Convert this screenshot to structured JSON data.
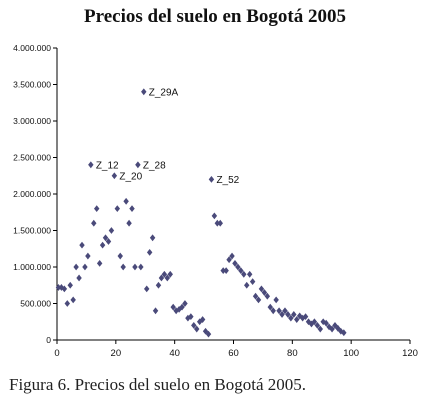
{
  "title": "Precios del suelo en Bogotá 2005",
  "caption": "Figura 6. Precios del suelo en Bogotá 2005.",
  "chart_data": {
    "type": "scatter",
    "title": "Precios del suelo en Bogotá 2005",
    "xlabel": "",
    "ylabel": "",
    "xlim": [
      0,
      120
    ],
    "ylim": [
      0,
      4000000
    ],
    "xticks": [
      "0",
      "20",
      "40",
      "60",
      "80",
      "100",
      "120"
    ],
    "yticks": [
      "0",
      "500.000",
      "1.000.000",
      "1.500.000",
      "2.000.000",
      "2.500.000",
      "3.000.000",
      "3.500.000",
      "4.000.000"
    ],
    "grid": false,
    "marker_color": "#4a4a7a",
    "points": [
      {
        "x": 0.5,
        "y": 720000
      },
      {
        "x": 1.5,
        "y": 720000
      },
      {
        "x": 2.5,
        "y": 700000
      },
      {
        "x": 3.5,
        "y": 500000
      },
      {
        "x": 4.5,
        "y": 750000
      },
      {
        "x": 5.5,
        "y": 550000
      },
      {
        "x": 6.5,
        "y": 1000000
      },
      {
        "x": 7.5,
        "y": 850000
      },
      {
        "x": 8.5,
        "y": 1300000
      },
      {
        "x": 9.5,
        "y": 1000000
      },
      {
        "x": 10.5,
        "y": 1150000
      },
      {
        "x": 11.5,
        "y": 2400000,
        "label": "Z_12"
      },
      {
        "x": 12.5,
        "y": 1600000
      },
      {
        "x": 13.5,
        "y": 1800000
      },
      {
        "x": 14.5,
        "y": 1050000
      },
      {
        "x": 15.5,
        "y": 1300000
      },
      {
        "x": 16.5,
        "y": 1400000
      },
      {
        "x": 17.5,
        "y": 1350000
      },
      {
        "x": 18.5,
        "y": 1500000
      },
      {
        "x": 19.5,
        "y": 2250000,
        "label": "Z_20"
      },
      {
        "x": 20.5,
        "y": 1800000
      },
      {
        "x": 21.5,
        "y": 1150000
      },
      {
        "x": 22.5,
        "y": 1000000
      },
      {
        "x": 23.5,
        "y": 1900000
      },
      {
        "x": 24.5,
        "y": 1600000
      },
      {
        "x": 25.5,
        "y": 1800000
      },
      {
        "x": 26.5,
        "y": 1000000
      },
      {
        "x": 27.5,
        "y": 2400000,
        "label": "Z_28"
      },
      {
        "x": 28.5,
        "y": 1000000
      },
      {
        "x": 29.5,
        "y": 3400000,
        "label": "Z_29A"
      },
      {
        "x": 30.5,
        "y": 700000
      },
      {
        "x": 31.5,
        "y": 1200000
      },
      {
        "x": 32.5,
        "y": 1400000
      },
      {
        "x": 33.5,
        "y": 400000
      },
      {
        "x": 34.5,
        "y": 750000
      },
      {
        "x": 35.5,
        "y": 850000
      },
      {
        "x": 36.5,
        "y": 900000
      },
      {
        "x": 37.5,
        "y": 850000
      },
      {
        "x": 38.5,
        "y": 900000
      },
      {
        "x": 39.5,
        "y": 450000
      },
      {
        "x": 40.5,
        "y": 400000
      },
      {
        "x": 41.5,
        "y": 420000
      },
      {
        "x": 42.5,
        "y": 450000
      },
      {
        "x": 43.5,
        "y": 500000
      },
      {
        "x": 44.5,
        "y": 300000
      },
      {
        "x": 45.5,
        "y": 320000
      },
      {
        "x": 46.5,
        "y": 200000
      },
      {
        "x": 47.5,
        "y": 150000
      },
      {
        "x": 48.5,
        "y": 250000
      },
      {
        "x": 49.5,
        "y": 280000
      },
      {
        "x": 50.5,
        "y": 120000
      },
      {
        "x": 51.5,
        "y": 80000
      },
      {
        "x": 52.5,
        "y": 2200000,
        "label": "Z_52"
      },
      {
        "x": 53.5,
        "y": 1700000
      },
      {
        "x": 54.5,
        "y": 1600000
      },
      {
        "x": 55.5,
        "y": 1600000
      },
      {
        "x": 56.5,
        "y": 950000
      },
      {
        "x": 57.5,
        "y": 950000
      },
      {
        "x": 58.5,
        "y": 1100000
      },
      {
        "x": 59.5,
        "y": 1150000
      },
      {
        "x": 60.5,
        "y": 1050000
      },
      {
        "x": 61.5,
        "y": 1000000
      },
      {
        "x": 62.5,
        "y": 950000
      },
      {
        "x": 63.5,
        "y": 900000
      },
      {
        "x": 64.5,
        "y": 750000
      },
      {
        "x": 65.5,
        "y": 900000
      },
      {
        "x": 66.5,
        "y": 800000
      },
      {
        "x": 67.5,
        "y": 600000
      },
      {
        "x": 68.5,
        "y": 550000
      },
      {
        "x": 69.5,
        "y": 700000
      },
      {
        "x": 70.5,
        "y": 650000
      },
      {
        "x": 71.5,
        "y": 600000
      },
      {
        "x": 72.5,
        "y": 450000
      },
      {
        "x": 73.5,
        "y": 400000
      },
      {
        "x": 74.5,
        "y": 550000
      },
      {
        "x": 75.5,
        "y": 400000
      },
      {
        "x": 76.5,
        "y": 350000
      },
      {
        "x": 77.5,
        "y": 400000
      },
      {
        "x": 78.5,
        "y": 350000
      },
      {
        "x": 79.5,
        "y": 300000
      },
      {
        "x": 80.5,
        "y": 350000
      },
      {
        "x": 81.5,
        "y": 280000
      },
      {
        "x": 82.5,
        "y": 330000
      },
      {
        "x": 83.5,
        "y": 300000
      },
      {
        "x": 84.5,
        "y": 320000
      },
      {
        "x": 85.5,
        "y": 250000
      },
      {
        "x": 86.5,
        "y": 220000
      },
      {
        "x": 87.5,
        "y": 250000
      },
      {
        "x": 88.5,
        "y": 200000
      },
      {
        "x": 89.5,
        "y": 150000
      },
      {
        "x": 90.5,
        "y": 250000
      },
      {
        "x": 91.5,
        "y": 230000
      },
      {
        "x": 92.5,
        "y": 180000
      },
      {
        "x": 93.5,
        "y": 150000
      },
      {
        "x": 94.5,
        "y": 200000
      },
      {
        "x": 95.5,
        "y": 160000
      },
      {
        "x": 96.5,
        "y": 120000
      },
      {
        "x": 97.5,
        "y": 100000
      }
    ]
  }
}
